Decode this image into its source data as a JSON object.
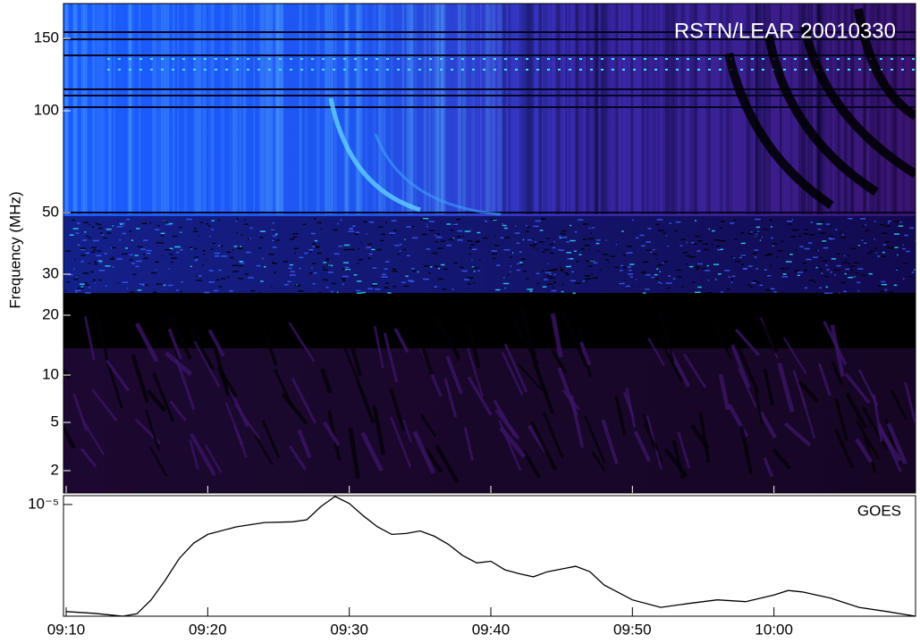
{
  "chart_data": [
    {
      "type": "spectrogram",
      "title": "RSTN/LEAR 20010330",
      "y_label": "Frequency (MHz)",
      "yticks": [
        150,
        100,
        50,
        30,
        20,
        10,
        5,
        2
      ]
    },
    {
      "type": "line",
      "log_y": true,
      "x": [
        "09:10",
        "09:12",
        "09:14",
        "09:15",
        "09:16",
        "09:17",
        "09:18",
        "09:19",
        "09:20",
        "09:22",
        "09:24",
        "09:26",
        "09:27",
        "09:28",
        "09:29",
        "09:30",
        "09:31",
        "09:32",
        "09:33",
        "09:34",
        "09:35",
        "09:36",
        "09:37",
        "09:38",
        "09:39",
        "09:40",
        "09:41",
        "09:42",
        "09:43",
        "09:44",
        "09:46",
        "09:47",
        "09:48",
        "09:50",
        "09:52",
        "09:54",
        "09:56",
        "09:58",
        "10:00",
        "10:01",
        "10:02",
        "10:04",
        "10:06",
        "10:08",
        "10:10"
      ],
      "series": [
        {
          "name": "GOES",
          "color": "#000000",
          "values": [
            1.1e-06,
            1.06e-06,
            1e-06,
            1.05e-06,
            1.4e-06,
            2.1e-06,
            3.3e-06,
            4.5e-06,
            5.4e-06,
            6.3e-06,
            6.9e-06,
            7e-06,
            7.3e-06,
            9.6e-06,
            1.18e-05,
            1.02e-05,
            7.9e-06,
            6.3e-06,
            5.4e-06,
            5.5e-06,
            5.8e-06,
            5.2e-06,
            4.4e-06,
            3.5e-06,
            3e-06,
            3.1e-06,
            2.6e-06,
            2.4e-06,
            2.25e-06,
            2.5e-06,
            2.8e-06,
            2.5e-06,
            1.9e-06,
            1.4e-06,
            1.2e-06,
            1.3e-06,
            1.4e-06,
            1.35e-06,
            1.55e-06,
            1.7e-06,
            1.65e-06,
            1.45e-06,
            1.2e-06,
            1.1e-06,
            1e-06
          ]
        }
      ],
      "xlim": [
        "09:10",
        "10:10"
      ],
      "xticks": [
        "09:10",
        "09:20",
        "09:30",
        "09:40",
        "09:50",
        "10:00"
      ],
      "ylim": [
        1e-06,
        1.2e-05
      ],
      "yticks": [
        {
          "value": 1e-05,
          "label": "10⁻⁵"
        }
      ]
    }
  ]
}
